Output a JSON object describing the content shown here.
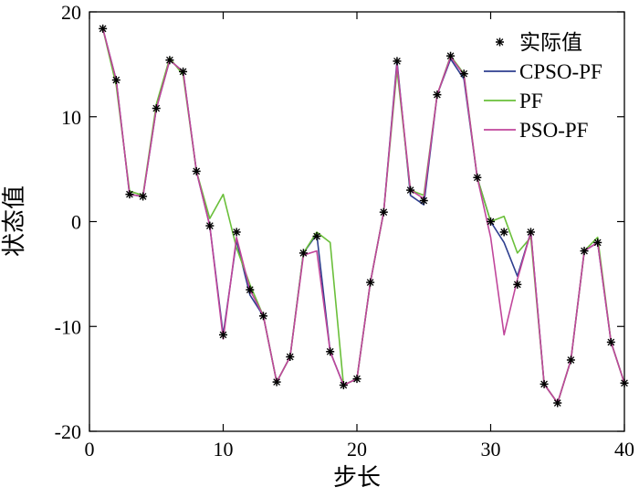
{
  "chart_data": {
    "type": "line",
    "xlabel": "步长",
    "ylabel": "状态值",
    "xlim": [
      0,
      40
    ],
    "ylim": [
      -20,
      20
    ],
    "xticks": [
      0,
      10,
      20,
      30,
      40
    ],
    "yticks": [
      -20,
      -10,
      0,
      10,
      20
    ],
    "grid": false,
    "legend_position": "top-right",
    "x": [
      1,
      2,
      3,
      4,
      5,
      6,
      7,
      8,
      9,
      10,
      11,
      12,
      13,
      14,
      15,
      16,
      17,
      18,
      19,
      20,
      21,
      22,
      23,
      24,
      25,
      26,
      27,
      28,
      29,
      30,
      31,
      32,
      33,
      34,
      35,
      36,
      37,
      38,
      39,
      40
    ],
    "actual": {
      "name": "实际值",
      "color": "#000000",
      "values": [
        18.4,
        13.5,
        2.6,
        2.4,
        10.8,
        15.4,
        14.3,
        4.8,
        -0.4,
        -10.8,
        -1.0,
        -6.5,
        -9.0,
        -15.3,
        -12.9,
        -3.0,
        -1.4,
        -12.4,
        -15.6,
        -15.0,
        -5.8,
        0.9,
        15.3,
        3.0,
        2.0,
        12.1,
        15.8,
        14.1,
        4.2,
        0.0,
        -1.0,
        -6.0,
        -1.0,
        -15.5,
        -17.3,
        -13.2,
        -2.8,
        -2.0,
        -11.5,
        -15.4
      ]
    },
    "series": [
      {
        "name": "CPSO-PF",
        "color": "#2e3f8f",
        "values": [
          18.4,
          13.5,
          2.6,
          2.4,
          10.8,
          15.4,
          14.3,
          4.8,
          -0.4,
          -10.8,
          -1.8,
          -7.0,
          -9.0,
          -15.3,
          -12.9,
          -3.0,
          -1.2,
          -12.4,
          -15.6,
          -15.0,
          -5.8,
          0.9,
          15.3,
          2.5,
          1.6,
          12.1,
          15.5,
          13.6,
          4.2,
          0.0,
          -2.0,
          -5.2,
          -1.0,
          -15.5,
          -17.3,
          -13.2,
          -2.8,
          -2.0,
          -11.5,
          -15.4
        ]
      },
      {
        "name": "PF",
        "color": "#6abf3a",
        "values": [
          18.4,
          13.0,
          2.9,
          2.5,
          11.2,
          15.6,
          14.0,
          4.8,
          0.3,
          2.6,
          -2.5,
          -6.0,
          -9.0,
          -15.3,
          -12.9,
          -3.0,
          -1.0,
          -2.0,
          -15.6,
          -15.0,
          -5.8,
          0.9,
          14.5,
          3.0,
          2.5,
          12.1,
          15.8,
          14.1,
          4.2,
          0.0,
          0.5,
          -3.0,
          -1.5,
          -15.5,
          -17.3,
          -13.2,
          -2.8,
          -1.5,
          -11.5,
          -15.4
        ]
      },
      {
        "name": "PSO-PF",
        "color": "#c0469b",
        "values": [
          18.4,
          13.5,
          2.6,
          2.4,
          10.8,
          15.4,
          14.3,
          4.8,
          -0.4,
          -11.2,
          -1.5,
          -6.5,
          -9.0,
          -15.3,
          -12.9,
          -3.2,
          -2.8,
          -12.4,
          -15.6,
          -15.0,
          -5.8,
          0.9,
          15.0,
          3.0,
          2.2,
          12.1,
          15.7,
          14.0,
          4.2,
          -1.5,
          -10.8,
          -5.5,
          -1.0,
          -15.5,
          -17.3,
          -13.2,
          -2.8,
          -2.0,
          -11.5,
          -15.4
        ]
      }
    ]
  }
}
